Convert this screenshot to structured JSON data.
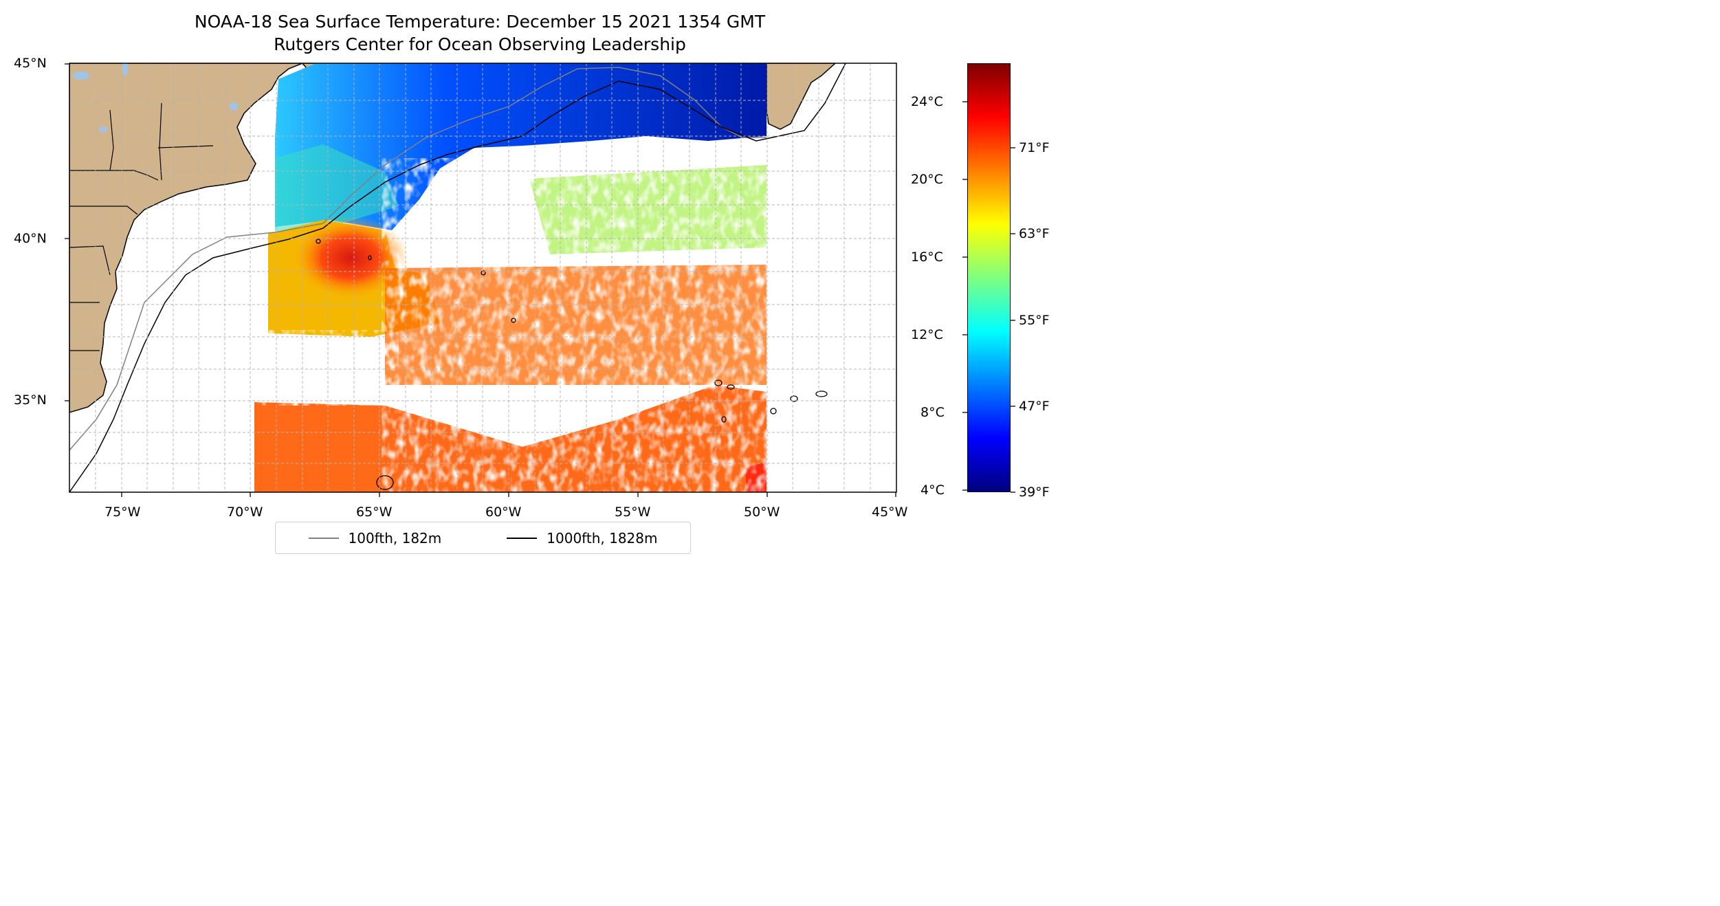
{
  "title": "NOAA-18 Sea Surface Temperature: December 15 2021 1354 GMT",
  "subtitle": "Rutgers Center for Ocean Observing Leadership",
  "map": {
    "lon_range": [
      -77,
      -45
    ],
    "lat_range": [
      32.3,
      45
    ],
    "x_tick_labels": [
      "75°W",
      "70°W",
      "65°W",
      "60°W",
      "55°W",
      "50°W",
      "45°W"
    ],
    "y_tick_labels": [
      "45°N",
      "40°N",
      "35°N"
    ],
    "grid": true,
    "land_color": "#d2b48c",
    "water_color": "#a0c4e8"
  },
  "legend": {
    "placement": "bottom-center",
    "entries": [
      {
        "label": "100fth, 182m",
        "color": "#808080"
      },
      {
        "label": "1000fth, 1828m",
        "color": "#000000"
      }
    ]
  },
  "colorbar": {
    "colormap": "jet",
    "celsius_labels": [
      "24°C",
      "20°C",
      "16°C",
      "12°C",
      "8°C",
      "4°C"
    ],
    "fahrenheit_labels": [
      "71°F",
      "63°F",
      "55°F",
      "47°F",
      "39°F"
    ]
  }
}
